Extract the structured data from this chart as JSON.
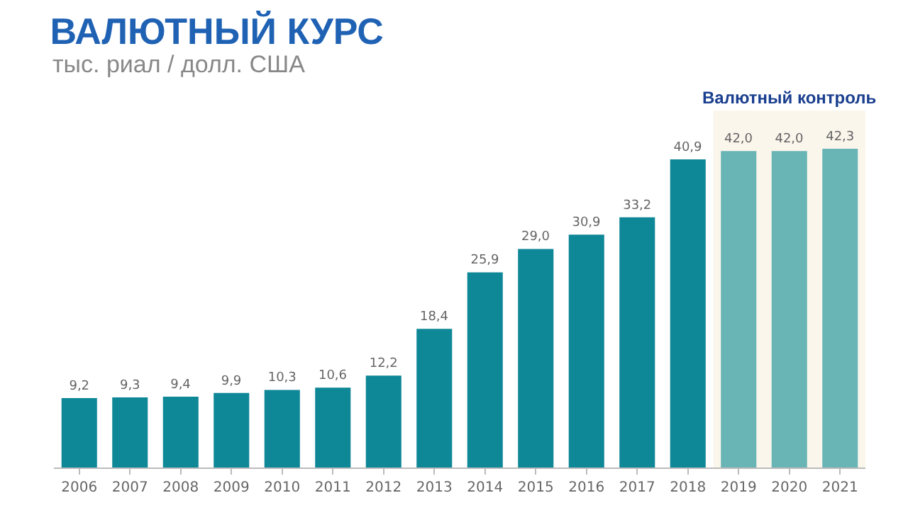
{
  "chart_data": {
    "type": "bar",
    "title": "ВАЛЮТНЫЙ КУРС",
    "subtitle": "тыс. риал / долл. США",
    "categories": [
      "2006",
      "2007",
      "2008",
      "2009",
      "2010",
      "2011",
      "2012",
      "2013",
      "2014",
      "2015",
      "2016",
      "2017",
      "2018",
      "2019",
      "2020",
      "2021"
    ],
    "values": [
      9.2,
      9.3,
      9.4,
      9.9,
      10.3,
      10.6,
      12.2,
      18.4,
      25.9,
      29.0,
      30.9,
      33.2,
      40.9,
      42.0,
      42.0,
      42.3
    ],
    "value_labels": [
      "9,2",
      "9,3",
      "9,4",
      "9,9",
      "10,3",
      "10,6",
      "12,2",
      "18,4",
      "25,9",
      "29,0",
      "30,9",
      "33,2",
      "40,9",
      "42,0",
      "42,0",
      "42,3"
    ],
    "colors": [
      "#0e8797",
      "#0e8797",
      "#0e8797",
      "#0e8797",
      "#0e8797",
      "#0e8797",
      "#0e8797",
      "#0e8797",
      "#0e8797",
      "#0e8797",
      "#0e8797",
      "#0e8797",
      "#0e8797",
      "#69b5b6",
      "#69b5b6",
      "#69b5b6"
    ],
    "bands": [
      {
        "axis": "x",
        "from": "2019",
        "to": "2021",
        "label": "Валютный контроль",
        "color": "#fbf6ec"
      }
    ],
    "grid": false
  }
}
